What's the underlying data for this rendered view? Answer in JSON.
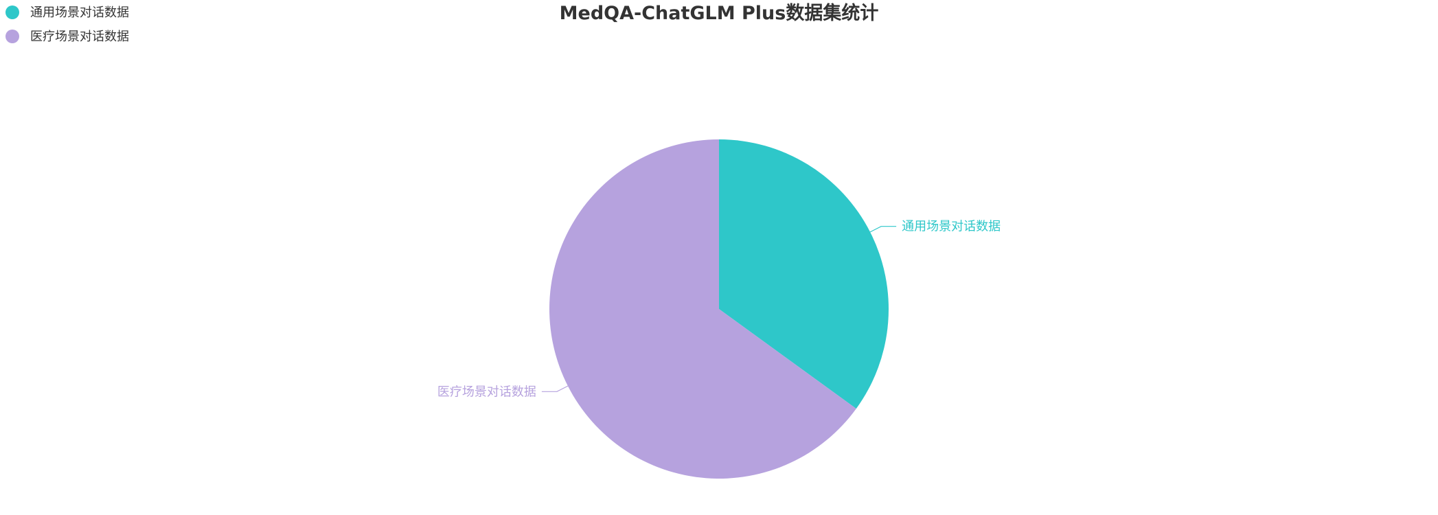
{
  "chart_data": {
    "type": "pie",
    "title": "MedQA-ChatGLM Plus数据集统计",
    "legend_position": "top-left",
    "slices": [
      {
        "name": "通用场景对话数据",
        "value": 35,
        "color": "#2EC7C9"
      },
      {
        "name": "医疗场景对话数据",
        "value": 65,
        "color": "#B6A2DE"
      }
    ]
  }
}
